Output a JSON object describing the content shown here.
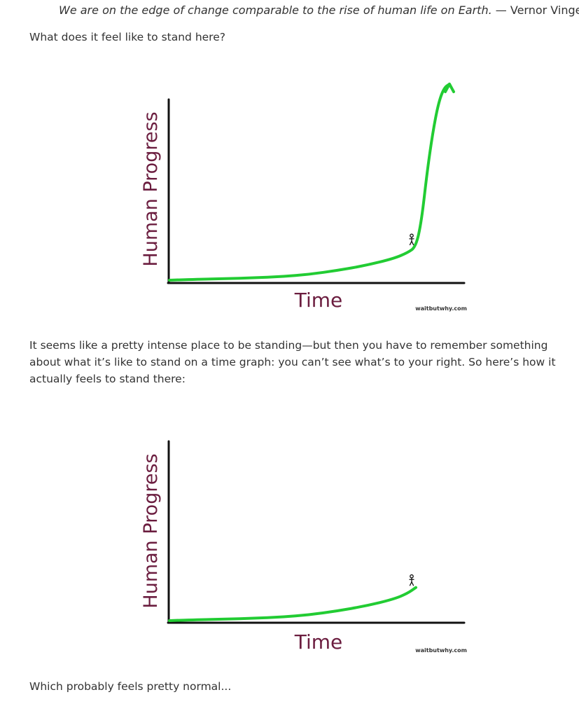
{
  "quote": {
    "text": "We are on the edge of change comparable to the rise of human life on Earth.",
    "attribution": " — Vernor Vinge"
  },
  "paragraphs": {
    "p1": "What does it feel like to stand here?",
    "p2": "It seems like a pretty intense place to be standing—but then you have to remember something about what it’s like to stand on a time graph: you can’t see what’s to your right. So here’s how it actually feels to stand there:",
    "p3": "Which probably feels pretty normal..."
  },
  "colors": {
    "curve": "#22cc33",
    "axis": "#111111",
    "label": "#6b1d3f"
  },
  "chart_data": [
    {
      "type": "line",
      "xlabel": "Time",
      "ylabel": "Human Progress",
      "credit": "waitbutwhy.com",
      "arrow_at_end": true,
      "figure_marker": "stick-figure",
      "series": [
        {
          "x": [
            0,
            0.1,
            0.2,
            0.3,
            0.4,
            0.5,
            0.6,
            0.7,
            0.8,
            0.85,
            0.88,
            0.9,
            0.92,
            0.94,
            0.96,
            0.98,
            1.0
          ],
          "y": [
            0,
            0.005,
            0.008,
            0.012,
            0.018,
            0.03,
            0.05,
            0.075,
            0.11,
            0.14,
            0.17,
            0.3,
            0.55,
            0.75,
            0.9,
            0.98,
            1.0
          ]
        }
      ]
    },
    {
      "type": "line",
      "xlabel": "Time",
      "ylabel": "Human Progress",
      "credit": "waitbutwhy.com",
      "arrow_at_end": false,
      "figure_marker": "stick-figure",
      "series": [
        {
          "x": [
            0,
            0.1,
            0.2,
            0.3,
            0.4,
            0.5,
            0.6,
            0.7,
            0.8,
            0.85,
            0.88
          ],
          "y": [
            0,
            0.005,
            0.008,
            0.012,
            0.018,
            0.03,
            0.05,
            0.075,
            0.11,
            0.14,
            0.17
          ]
        }
      ]
    }
  ]
}
